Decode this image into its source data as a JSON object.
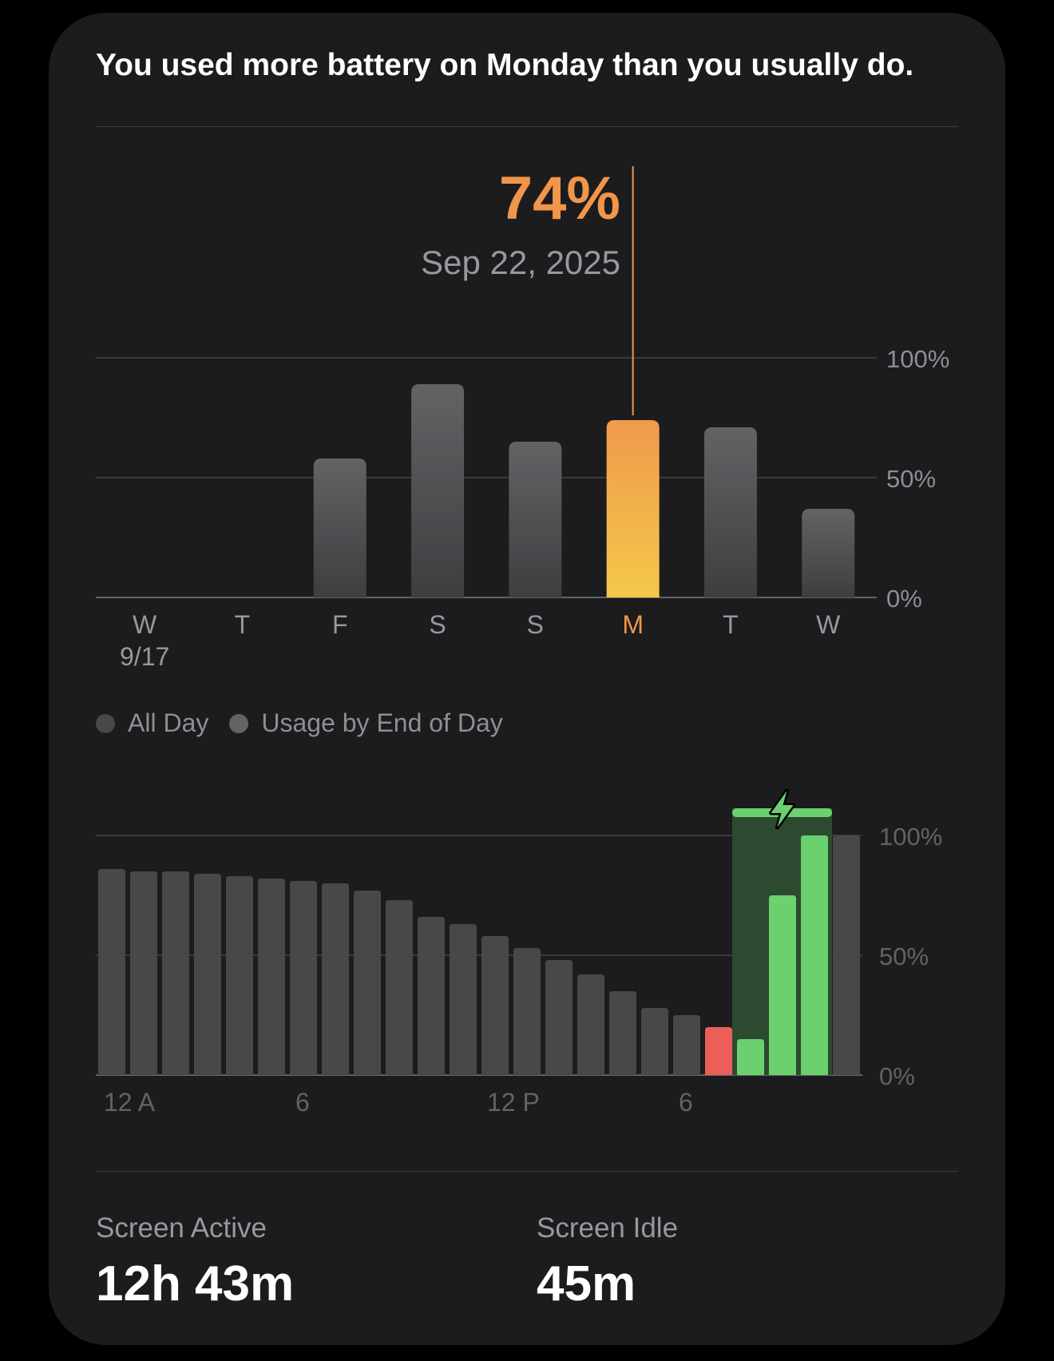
{
  "headline": "You used more battery on Monday than you usually do.",
  "selection": {
    "value": "74%",
    "date": "Sep 22, 2025"
  },
  "chart_data": [
    {
      "type": "bar",
      "title": "",
      "categories": [
        "W",
        "T",
        "F",
        "S",
        "S",
        "M",
        "T",
        "W"
      ],
      "sub_labels": [
        "9/17",
        "",
        "",
        "",
        "",
        "",
        "",
        ""
      ],
      "values": [
        null,
        null,
        58,
        89,
        65,
        74,
        71,
        37
      ],
      "selected_index": 5,
      "y_ticks": [
        "100%",
        "50%",
        "0%"
      ],
      "ylim": [
        0,
        100
      ],
      "colors": {
        "default": "#5a5a5e",
        "selected_top": "#ef9a4c",
        "selected_bottom": "#f5c84a",
        "selected_label": "#f0964a"
      }
    },
    {
      "type": "bar",
      "title": "",
      "x_ticks": [
        "12 A",
        "6",
        "12 P",
        "6"
      ],
      "y_ticks": [
        "100%",
        "50%",
        "0%"
      ],
      "ylim": [
        0,
        100
      ],
      "values": [
        86,
        85,
        85,
        84,
        83,
        82,
        81,
        80,
        77,
        73,
        66,
        63,
        58,
        53,
        48,
        42,
        35,
        28,
        25,
        20,
        15,
        75,
        100,
        100
      ],
      "bar_types": [
        "normal",
        "normal",
        "normal",
        "normal",
        "normal",
        "normal",
        "normal",
        "normal",
        "normal",
        "normal",
        "normal",
        "normal",
        "normal",
        "normal",
        "normal",
        "normal",
        "normal",
        "normal",
        "normal",
        "low",
        "charging",
        "charging",
        "charging",
        "future"
      ],
      "charging_icon": "lightning-bolt-icon",
      "colors": {
        "normal": "#48484a",
        "low": "#ec5f58",
        "charging": "#6bd06f",
        "charging_band": "#2d4a30",
        "future": "#48484a"
      }
    }
  ],
  "legend": {
    "all_day": "All Day",
    "usage_end_of_day": "Usage by End of Day"
  },
  "stats": [
    {
      "label": "Screen Active",
      "value": "12h 43m"
    },
    {
      "label": "Screen Idle",
      "value": "45m"
    }
  ]
}
